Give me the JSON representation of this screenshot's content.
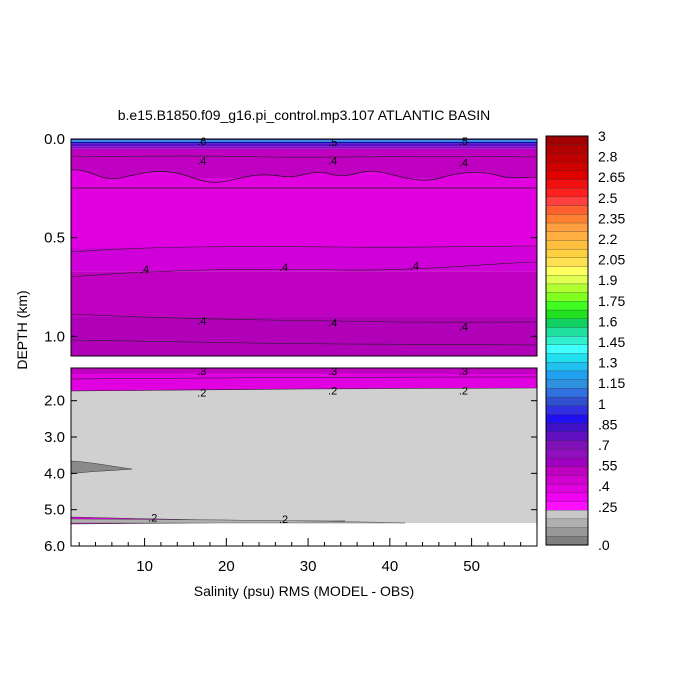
{
  "chart_data": {
    "type": "heatmap",
    "title": "b.e15.B1850.f09_g16.pi_control.mp3.107 ATLANTIC BASIN",
    "xlabel": "Salinity (psu) RMS (MODEL - OBS)",
    "ylabel": "DEPTH (km)",
    "xlim": [
      1,
      58
    ],
    "x_ticks": [
      "10",
      "20",
      "30",
      "40",
      "50"
    ],
    "upper_panel": {
      "ylim": [
        0.0,
        1.1
      ],
      "y_ticks": [
        "0.0",
        "0.5",
        "1.0"
      ],
      "bands": [
        {
          "depth_top": 0.0,
          "depth_bottom": 0.006,
          "color": "#3030b8"
        },
        {
          "depth_top": 0.006,
          "depth_bottom": 0.014,
          "color": "#2090e0"
        },
        {
          "depth_top": 0.014,
          "depth_bottom": 0.022,
          "color": "#1010b0"
        },
        {
          "depth_top": 0.022,
          "depth_bottom": 0.036,
          "color": "#5a10c8"
        },
        {
          "depth_top": 0.036,
          "depth_bottom": 0.05,
          "color": "#8010c8"
        },
        {
          "depth_top": 0.05,
          "depth_bottom": 0.2,
          "color": "#c000c0"
        },
        {
          "depth_top": 0.2,
          "depth_bottom": 0.55,
          "color": "#e000e0"
        },
        {
          "depth_top": 0.55,
          "depth_bottom": 0.67,
          "color": "#d000d8"
        },
        {
          "depth_top": 0.67,
          "depth_bottom": 0.9,
          "color": "#c000c0"
        },
        {
          "depth_top": 0.9,
          "depth_bottom": 1.1,
          "color": "#b000b8"
        }
      ],
      "contour_labels": [
        {
          "x": 17,
          "depth": 0.01,
          "text": ".6"
        },
        {
          "x": 33,
          "depth": 0.015,
          "text": ".5"
        },
        {
          "x": 49,
          "depth": 0.01,
          "text": ".5"
        },
        {
          "x": 17,
          "depth": 0.11,
          "text": ".4"
        },
        {
          "x": 33,
          "depth": 0.11,
          "text": ".4"
        },
        {
          "x": 49,
          "depth": 0.12,
          "text": ".4"
        },
        {
          "x": 10,
          "depth": 0.66,
          "text": ".4"
        },
        {
          "x": 27,
          "depth": 0.65,
          "text": ".4"
        },
        {
          "x": 43,
          "depth": 0.64,
          "text": ".4"
        },
        {
          "x": 17,
          "depth": 0.92,
          "text": ".4"
        },
        {
          "x": 33,
          "depth": 0.93,
          "text": ".4"
        },
        {
          "x": 49,
          "depth": 0.95,
          "text": ".4"
        }
      ]
    },
    "lower_panel": {
      "ylim": [
        1.1,
        6.0
      ],
      "y_ticks": [
        "2.0",
        "3.0",
        "4.0",
        "5.0",
        "6.0"
      ],
      "contour_labels": [
        {
          "x": 17,
          "depth": 1.18,
          "text": ".3"
        },
        {
          "x": 33,
          "depth": 1.18,
          "text": ".3"
        },
        {
          "x": 49,
          "depth": 1.18,
          "text": ".3"
        },
        {
          "x": 17,
          "depth": 1.78,
          "text": ".2"
        },
        {
          "x": 33,
          "depth": 1.72,
          "text": ".2"
        },
        {
          "x": 49,
          "depth": 1.72,
          "text": ".2"
        },
        {
          "x": 11,
          "depth": 5.22,
          "text": ".2"
        },
        {
          "x": 27,
          "depth": 5.25,
          "text": ".2"
        }
      ]
    },
    "colorbar": {
      "labels": [
        "3",
        "2.8",
        "2.65",
        "2.5",
        "2.35",
        "2.2",
        "2.05",
        "1.9",
        "1.75",
        "1.6",
        "1.45",
        "1.3",
        "1.15",
        "1",
        ".85",
        ".7",
        ".55",
        ".4",
        ".25",
        ".0"
      ],
      "colors": [
        "#a00000",
        "#b00000",
        "#c00000",
        "#d00000",
        "#e00000",
        "#f01010",
        "#ff2020",
        "#ff4040",
        "#ff6030",
        "#ff8030",
        "#ffa040",
        "#ffb040",
        "#ffc040",
        "#ffd040",
        "#ffe050",
        "#ffff60",
        "#e0ff50",
        "#b0ff30",
        "#80ff20",
        "#40ff20",
        "#20e020",
        "#10d060",
        "#20e0a0",
        "#30f0d0",
        "#40ffff",
        "#20e0f0",
        "#20c0f0",
        "#20a0f0",
        "#3090e0",
        "#3070e0",
        "#3050d0",
        "#3030e0",
        "#2010f0",
        "#4010c8",
        "#6010c0",
        "#8010b8",
        "#9010c0",
        "#a000c0",
        "#c000c0",
        "#d000d0",
        "#e000e0",
        "#f000f0",
        "#ff10ff",
        "#c8c8c8",
        "#b0b0b0",
        "#989898",
        "#808080"
      ]
    }
  }
}
